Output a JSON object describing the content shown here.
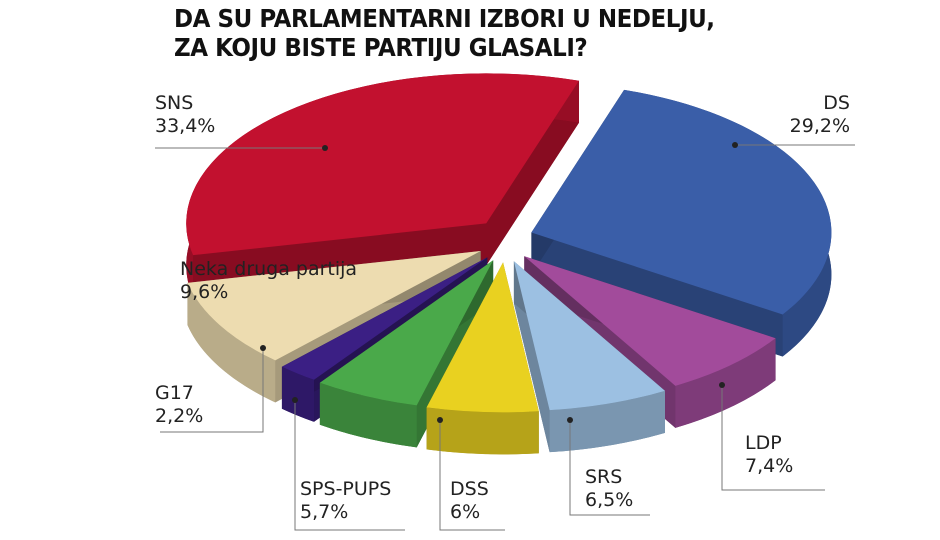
{
  "title_line1": "DA SU PARLAMENTARNI IZBORI U NEDELJU,",
  "title_line2": "ZA KOJU BISTE PARTIJU GLASALI?",
  "chart_data": {
    "type": "pie",
    "style": "3d-exploded",
    "title": "DA SU PARLAMENTARNI IZBORI U NEDELJU, ZA KOJU BISTE PARTIJU GLASALI?",
    "slices": [
      {
        "name": "DS",
        "value": 29.2,
        "label": "29,2%",
        "color": "#3a5ea8"
      },
      {
        "name": "LDP",
        "value": 7.4,
        "label": "7,4%",
        "color": "#a24b9b"
      },
      {
        "name": "SRS",
        "value": 6.5,
        "label": "6,5%",
        "color": "#9cc0e2"
      },
      {
        "name": "DSS",
        "value": 6.0,
        "label": "6%",
        "color": "#e9d120"
      },
      {
        "name": "SPS-PUPS",
        "value": 5.7,
        "label": "5,7%",
        "color": "#4aa94a"
      },
      {
        "name": "G17",
        "value": 2.2,
        "label": "2,2%",
        "color": "#3b1f84"
      },
      {
        "name": "Neka druga partija",
        "value": 9.6,
        "label": "9,6%",
        "color": "#eddcb0"
      },
      {
        "name": "SNS",
        "value": 33.4,
        "label": "33,4%",
        "color": "#c2112f"
      }
    ]
  }
}
